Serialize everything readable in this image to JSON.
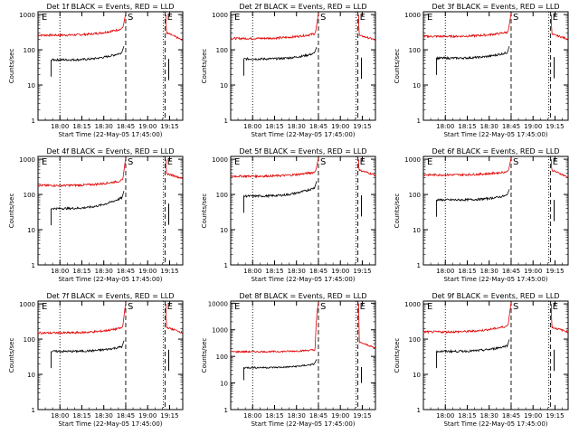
{
  "chart_data": [
    {
      "type": "line",
      "title": "Det 1f BLACK = Events, RED = LLD",
      "xlabel": "Start Time (22-May-05 17:45:00)",
      "ylabel": "Counts/sec",
      "xticks": [
        "18:00",
        "18:15",
        "18:30",
        "18:45",
        "19:00",
        "19:15"
      ],
      "yticks": [
        "1",
        "10",
        "100",
        "1000"
      ],
      "ylim": [
        1,
        1200
      ],
      "yscale": "log",
      "series": [
        {
          "color": "red",
          "pre": 260,
          "pre_end": 420,
          "peak": 1100,
          "post": 310,
          "post_end": 180
        },
        {
          "color": "black",
          "pre": 52,
          "pre_end": 90,
          "post": 55
        }
      ]
    },
    {
      "type": "line",
      "title": "Det 2f BLACK = Events, RED = LLD",
      "xlabel": "Start Time (22-May-05 17:45:00)",
      "ylabel": "Counts/sec",
      "xticks": [
        "18:00",
        "18:15",
        "18:30",
        "18:45",
        "19:00",
        "19:15"
      ],
      "yticks": [
        "1",
        "10",
        "100",
        "1000"
      ],
      "ylim": [
        1,
        1200
      ],
      "yscale": "log",
      "series": [
        {
          "color": "red",
          "pre": 210,
          "pre_end": 300,
          "peak": 1100,
          "post": 260,
          "post_end": 190
        },
        {
          "color": "black",
          "pre": 55,
          "pre_end": 85,
          "post": 60
        }
      ]
    },
    {
      "type": "line",
      "title": "Det 3f BLACK = Events, RED = LLD",
      "xlabel": "Start Time (22-May-05 17:45:00)",
      "ylabel": "Counts/sec",
      "xticks": [
        "18:00",
        "18:15",
        "18:30",
        "18:45",
        "19:00",
        "19:15"
      ],
      "yticks": [
        "1",
        "10",
        "100",
        "1000"
      ],
      "ylim": [
        1,
        1200
      ],
      "yscale": "log",
      "series": [
        {
          "color": "red",
          "pre": 240,
          "pre_end": 330,
          "peak": 1100,
          "post": 280,
          "post_end": 200
        },
        {
          "color": "black",
          "pre": 58,
          "pre_end": 90,
          "post": 62
        }
      ]
    },
    {
      "type": "line",
      "title": "Det 4f BLACK = Events, RED = LLD",
      "xlabel": "Start Time (22-May-05 17:45:00)",
      "ylabel": "Counts/sec",
      "xticks": [
        "18:00",
        "18:15",
        "18:30",
        "18:45",
        "19:00",
        "19:15"
      ],
      "yticks": [
        "1",
        "10",
        "100",
        "1000"
      ],
      "ylim": [
        1,
        1200
      ],
      "yscale": "log",
      "series": [
        {
          "color": "red",
          "pre": 180,
          "pre_end": 260,
          "peak": 1100,
          "post": 400,
          "post_end": 280
        },
        {
          "color": "black",
          "pre": 40,
          "pre_end": 90,
          "post": 55
        }
      ]
    },
    {
      "type": "line",
      "title": "Det 5f BLACK = Events, RED = LLD",
      "xlabel": "Start Time (22-May-05 17:45:00)",
      "ylabel": "Counts/sec",
      "xticks": [
        "18:00",
        "18:15",
        "18:30",
        "18:45",
        "19:00",
        "19:15"
      ],
      "yticks": [
        "1",
        "10",
        "100",
        "1000"
      ],
      "ylim": [
        1,
        1200
      ],
      "yscale": "log",
      "series": [
        {
          "color": "red",
          "pre": 330,
          "pre_end": 450,
          "peak": 1100,
          "post": 500,
          "post_end": 350
        },
        {
          "color": "black",
          "pre": 90,
          "pre_end": 170,
          "post": 95
        }
      ]
    },
    {
      "type": "line",
      "title": "Det 6f BLACK = Events, RED = LLD",
      "xlabel": "Start Time (22-May-05 17:45:00)",
      "ylabel": "Counts/sec",
      "xticks": [
        "18:00",
        "18:15",
        "18:30",
        "18:45",
        "19:00",
        "19:15"
      ],
      "yticks": [
        "1",
        "10",
        "100",
        "1000"
      ],
      "ylim": [
        1,
        1200
      ],
      "yscale": "log",
      "series": [
        {
          "color": "red",
          "pre": 360,
          "pre_end": 460,
          "peak": 1100,
          "post": 500,
          "post_end": 300
        },
        {
          "color": "black",
          "pre": 70,
          "pre_end": 100,
          "post": 70
        }
      ]
    },
    {
      "type": "line",
      "title": "Det 7f BLACK = Events, RED = LLD",
      "xlabel": "Start Time (22-May-05 17:45:00)",
      "ylabel": "Counts/sec",
      "xticks": [
        "18:00",
        "18:15",
        "18:30",
        "18:45",
        "19:00",
        "19:15"
      ],
      "yticks": [
        "1",
        "10",
        "100",
        "1000"
      ],
      "ylim": [
        1,
        1200
      ],
      "yscale": "log",
      "series": [
        {
          "color": "red",
          "pre": 150,
          "pre_end": 220,
          "peak": 1100,
          "post": 220,
          "post_end": 150
        },
        {
          "color": "black",
          "pre": 45,
          "pre_end": 65,
          "post": 50
        }
      ]
    },
    {
      "type": "line",
      "title": "Det 8f BLACK = Events, RED = LLD",
      "xlabel": "Start Time (22-May-05 17:45:00)",
      "ylabel": "Counts/sec",
      "xticks": [
        "18:00",
        "18:15",
        "18:30",
        "18:45",
        "19:00",
        "19:15"
      ],
      "yticks": [
        "1",
        "10",
        "100",
        "1000",
        "10000"
      ],
      "ylim": [
        1,
        12000
      ],
      "yscale": "log",
      "series": [
        {
          "color": "red",
          "pre": 150,
          "pre_end": 180,
          "peak": 11000,
          "post": 350,
          "post_end": 200
        },
        {
          "color": "black",
          "pre": 38,
          "pre_end": 55,
          "post": 40
        }
      ]
    },
    {
      "type": "line",
      "title": "Det 9f BLACK = Events, RED = LLD",
      "xlabel": "Start Time (22-May-05 17:45:00)",
      "ylabel": "Counts/sec",
      "xticks": [
        "18:00",
        "18:15",
        "18:30",
        "18:45",
        "19:00",
        "19:15"
      ],
      "yticks": [
        "1",
        "10",
        "100",
        "1000"
      ],
      "ylim": [
        1,
        1200
      ],
      "yscale": "log",
      "series": [
        {
          "color": "red",
          "pre": 160,
          "pre_end": 250,
          "peak": 1100,
          "post": 220,
          "post_end": 160
        },
        {
          "color": "black",
          "pre": 45,
          "pre_end": 70,
          "post": 50
        }
      ]
    }
  ],
  "markers": {
    "start": "S",
    "end": "E"
  }
}
